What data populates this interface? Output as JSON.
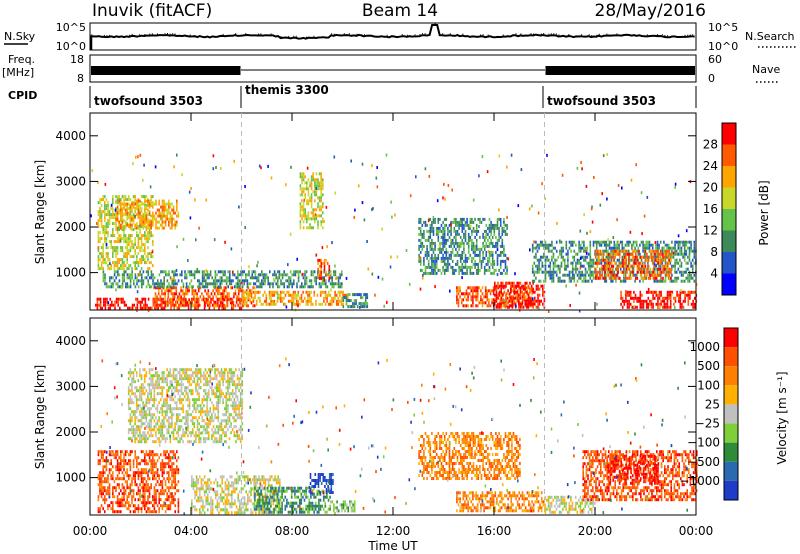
{
  "header": {
    "station": "Inuvik (fitACF)",
    "beam": "Beam 14",
    "date": "28/May/2016"
  },
  "status_panels": {
    "nsky_label": "N.Sky",
    "noise_ticks_left": [
      "10^5",
      "10^0"
    ],
    "noise_ticks_right": [
      "10^5",
      "10^0"
    ],
    "nsearch_label": "N.Search",
    "freq_label": "Freq.",
    "freq_unit": "[MHz]",
    "freq_ticks": [
      "18",
      "8"
    ],
    "nave_ticks": [
      "60",
      "0"
    ],
    "nave_label": "Nave",
    "cpid_label": "CPID",
    "cpid_segments": [
      {
        "name": "twofsound 3503",
        "start": 0,
        "end": 6
      },
      {
        "name": "themis 3300",
        "start": 6,
        "end": 18
      },
      {
        "name": "twofsound 3503",
        "start": 18,
        "end": 24
      }
    ]
  },
  "chart_data": [
    {
      "type": "heatmap",
      "id": "power",
      "ylabel": "Slant Range [km]",
      "ylim": [
        180,
        4500
      ],
      "yticks": [
        "1000",
        "2000",
        "3000",
        "4000"
      ],
      "xlim": [
        0,
        24
      ],
      "colorbar_label": "Power [dB]",
      "colorbar_ticks": [
        "4",
        "8",
        "12",
        "16",
        "20",
        "24",
        "28"
      ],
      "colors": [
        "#0000ff",
        "#2255c8",
        "#3c8a5a",
        "#66c34a",
        "#c8d72a",
        "#ffa500",
        "#ff5a00",
        "#ff0000"
      ],
      "regions": [
        {
          "t0": 0.2,
          "t1": 6.0,
          "r0": 250,
          "r1": 450,
          "level": 7
        },
        {
          "t0": 2.5,
          "t1": 6.5,
          "r0": 300,
          "r1": 700,
          "level": 6
        },
        {
          "t0": 6.0,
          "t1": 10.2,
          "r0": 300,
          "r1": 600,
          "level": 5
        },
        {
          "t0": 0.5,
          "t1": 10.0,
          "r0": 700,
          "r1": 1050,
          "level": 2
        },
        {
          "t0": 0.3,
          "t1": 2.5,
          "r0": 1100,
          "r1": 2700,
          "level": 4
        },
        {
          "t0": 1.0,
          "t1": 3.5,
          "r0": 2000,
          "r1": 2600,
          "level": 5
        },
        {
          "t0": 8.3,
          "t1": 9.2,
          "r0": 2000,
          "r1": 3200,
          "level": 4
        },
        {
          "t0": 9.0,
          "t1": 9.5,
          "r0": 900,
          "r1": 1300,
          "level": 6
        },
        {
          "t0": 10.0,
          "t1": 11.0,
          "r0": 250,
          "r1": 550,
          "level": 2
        },
        {
          "t0": 13.0,
          "t1": 16.5,
          "r0": 1000,
          "r1": 2200,
          "level": 2
        },
        {
          "t0": 14.5,
          "t1": 17.5,
          "r0": 250,
          "r1": 700,
          "level": 6
        },
        {
          "t0": 16.0,
          "t1": 18.0,
          "r0": 250,
          "r1": 800,
          "level": 7
        },
        {
          "t0": 17.5,
          "t1": 24.0,
          "r0": 800,
          "r1": 1700,
          "level": 2
        },
        {
          "t0": 20.0,
          "t1": 23.0,
          "r0": 900,
          "r1": 1500,
          "level": 6
        },
        {
          "t0": 21.0,
          "t1": 24.0,
          "r0": 250,
          "r1": 600,
          "level": 7
        }
      ]
    },
    {
      "type": "heatmap",
      "id": "velocity",
      "ylabel": "Slant Range [km]",
      "ylim": [
        180,
        4500
      ],
      "yticks": [
        "1000",
        "2000",
        "3000",
        "4000"
      ],
      "xlim": [
        0,
        24
      ],
      "xlabel": "Time UT",
      "xticks": [
        "00:00",
        "04:00",
        "08:00",
        "12:00",
        "16:00",
        "20:00",
        "00:00"
      ],
      "colorbar_label": "Velocity [m s⁻¹]",
      "colorbar_ticks": [
        "1000",
        "500",
        "100",
        "25",
        "−25",
        "−100",
        "−500",
        "−1000"
      ],
      "colors": [
        "#1e3cc8",
        "#2a6ab0",
        "#2e8b3a",
        "#7fcf3a",
        "#c0c0c0",
        "#ffb000",
        "#ff8000",
        "#ff5000",
        "#ff0000"
      ],
      "regions": [
        {
          "t0": 0.3,
          "t1": 3.5,
          "r0": 250,
          "r1": 1600,
          "level": 7
        },
        {
          "t0": 1.5,
          "t1": 6.0,
          "r0": 1800,
          "r1": 3400,
          "level": 4
        },
        {
          "t0": 4.0,
          "t1": 7.5,
          "r0": 250,
          "r1": 1050,
          "level": 4
        },
        {
          "t0": 6.5,
          "t1": 9.5,
          "r0": 250,
          "r1": 800,
          "level": 2
        },
        {
          "t0": 8.7,
          "t1": 9.6,
          "r0": 700,
          "r1": 1100,
          "level": 0
        },
        {
          "t0": 9.5,
          "t1": 10.5,
          "r0": 250,
          "r1": 500,
          "level": 3
        },
        {
          "t0": 13.0,
          "t1": 17.0,
          "r0": 1000,
          "r1": 2000,
          "level": 6
        },
        {
          "t0": 14.5,
          "t1": 18.0,
          "r0": 250,
          "r1": 700,
          "level": 6
        },
        {
          "t0": 18.0,
          "t1": 20.0,
          "r0": 250,
          "r1": 600,
          "level": 4
        },
        {
          "t0": 19.5,
          "t1": 24.0,
          "r0": 500,
          "r1": 1600,
          "level": 7
        },
        {
          "t0": 20.5,
          "t1": 22.5,
          "r0": 900,
          "r1": 1500,
          "level": 8
        }
      ]
    }
  ]
}
